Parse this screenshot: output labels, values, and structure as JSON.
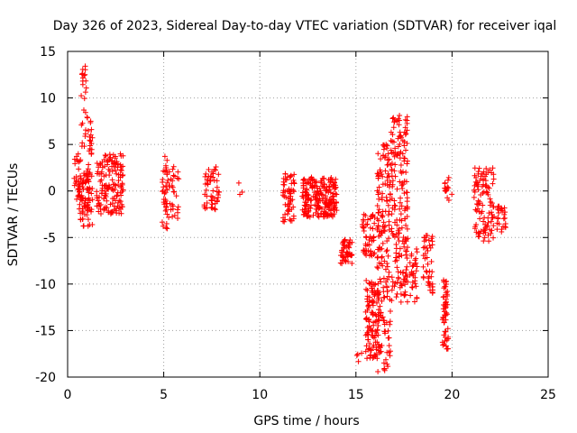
{
  "chart_data": {
    "type": "scatter",
    "title": "Day 326 of 2023, Sidereal Day-to-day VTEC variation (SDTVAR) for receiver iqal",
    "xlabel": "GPS time / hours",
    "ylabel": "SDTVAR / TECUs",
    "xlim": [
      0,
      25
    ],
    "ylim": [
      -20,
      15
    ],
    "xticks": [
      0,
      5,
      10,
      15,
      20,
      25
    ],
    "yticks": [
      -20,
      -15,
      -10,
      -5,
      0,
      5,
      10,
      15
    ],
    "grid": true,
    "marker": "+",
    "color": "#ff0000",
    "clusters": [
      {
        "x": [
          0.3,
          0.7
        ],
        "y": [
          -1.0,
          4.0
        ],
        "n": 30
      },
      {
        "x": [
          0.6,
          1.3
        ],
        "y": [
          -3.8,
          2.0
        ],
        "n": 80
      },
      {
        "x": [
          0.7,
          1.0
        ],
        "y": [
          4.0,
          13.5
        ],
        "n": 25
      },
      {
        "x": [
          1.0,
          1.3
        ],
        "y": [
          1.0,
          8.0
        ],
        "n": 25
      },
      {
        "x": [
          1.5,
          2.9
        ],
        "y": [
          -2.5,
          4.0
        ],
        "n": 150
      },
      {
        "x": [
          4.9,
          5.2
        ],
        "y": [
          -4.5,
          4.0
        ],
        "n": 30
      },
      {
        "x": [
          5.1,
          5.8
        ],
        "y": [
          -3.0,
          3.0
        ],
        "n": 40
      },
      {
        "x": [
          7.1,
          7.9
        ],
        "y": [
          -2.0,
          2.8
        ],
        "n": 50
      },
      {
        "x": [
          8.9,
          9.1
        ],
        "y": [
          -0.7,
          1.3
        ],
        "n": 3
      },
      {
        "x": [
          11.2,
          11.8
        ],
        "y": [
          -3.5,
          2.0
        ],
        "n": 60
      },
      {
        "x": [
          12.2,
          14.0
        ],
        "y": [
          -2.8,
          1.5
        ],
        "n": 220
      },
      {
        "x": [
          14.2,
          14.8
        ],
        "y": [
          -7.8,
          -5.0
        ],
        "n": 50
      },
      {
        "x": [
          15.0,
          15.3
        ],
        "y": [
          -19.0,
          -17.2
        ],
        "n": 4
      },
      {
        "x": [
          15.3,
          16.0
        ],
        "y": [
          -7.0,
          -2.5
        ],
        "n": 50
      },
      {
        "x": [
          15.5,
          16.2
        ],
        "y": [
          -18.0,
          -9.5
        ],
        "n": 110
      },
      {
        "x": [
          16.1,
          16.8
        ],
        "y": [
          -19.5,
          5.0
        ],
        "n": 180
      },
      {
        "x": [
          16.8,
          17.7
        ],
        "y": [
          -12.0,
          8.2
        ],
        "n": 190
      },
      {
        "x": [
          17.8,
          18.2
        ],
        "y": [
          -12.0,
          -6.0
        ],
        "n": 30
      },
      {
        "x": [
          18.5,
          19.0
        ],
        "y": [
          -11.0,
          -4.5
        ],
        "n": 45
      },
      {
        "x": [
          19.5,
          19.8
        ],
        "y": [
          -17.0,
          -9.5
        ],
        "n": 55
      },
      {
        "x": [
          19.6,
          20.0
        ],
        "y": [
          -1.0,
          1.5
        ],
        "n": 15
      },
      {
        "x": [
          21.1,
          21.6
        ],
        "y": [
          -5.0,
          2.5
        ],
        "n": 45
      },
      {
        "x": [
          21.6,
          22.2
        ],
        "y": [
          -5.5,
          2.5
        ],
        "n": 60
      },
      {
        "x": [
          22.3,
          22.8
        ],
        "y": [
          -4.5,
          -1.5
        ],
        "n": 25
      }
    ]
  }
}
